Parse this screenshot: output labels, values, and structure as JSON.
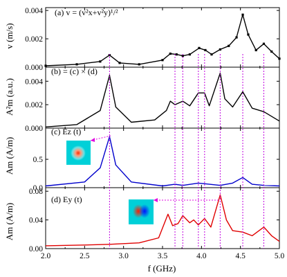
{
  "chart_data": {
    "type": "line",
    "x_range": [
      2.0,
      5.0
    ],
    "x_ticks": [
      "2.0",
      "2.5",
      "3.0",
      "3.5",
      "4.0",
      "4.5",
      "5.0"
    ],
    "x_label": "f (GHz)",
    "guide_lines_ghz": [
      2.82,
      3.66,
      3.76,
      3.96,
      4.04,
      4.24,
      4.53,
      4.8
    ],
    "panels": [
      {
        "id": "a",
        "label": "(a) v = (v²x+v²y)¹/²",
        "ylabel": "v (m/s)",
        "ylim": [
          0,
          0.0042
        ],
        "y_ticks": [
          {
            "v": 0,
            "t": "0.000"
          },
          {
            "v": 0.002,
            "t": "0.002"
          },
          {
            "v": 0.004,
            "t": "0.004"
          }
        ],
        "color": "#000000",
        "markers": true,
        "series": [
          {
            "x": 2.0,
            "y": 0.0001
          },
          {
            "x": 2.4,
            "y": 0.0002
          },
          {
            "x": 2.7,
            "y": 0.0004
          },
          {
            "x": 2.82,
            "y": 0.00085
          },
          {
            "x": 2.95,
            "y": 0.0003
          },
          {
            "x": 3.2,
            "y": 0.0002
          },
          {
            "x": 3.5,
            "y": 0.0005
          },
          {
            "x": 3.6,
            "y": 0.00095
          },
          {
            "x": 3.68,
            "y": 0.0009
          },
          {
            "x": 3.76,
            "y": 0.0008
          },
          {
            "x": 3.85,
            "y": 0.0009
          },
          {
            "x": 3.97,
            "y": 0.00135
          },
          {
            "x": 4.05,
            "y": 0.0012
          },
          {
            "x": 4.13,
            "y": 0.0009
          },
          {
            "x": 4.24,
            "y": 0.00125
          },
          {
            "x": 4.35,
            "y": 0.0015
          },
          {
            "x": 4.45,
            "y": 0.0021
          },
          {
            "x": 4.53,
            "y": 0.0037
          },
          {
            "x": 4.6,
            "y": 0.0023
          },
          {
            "x": 4.7,
            "y": 0.0012
          },
          {
            "x": 4.8,
            "y": 0.00165
          },
          {
            "x": 4.9,
            "y": 0.0011
          },
          {
            "x": 5.0,
            "y": 0.0006
          }
        ]
      },
      {
        "id": "b",
        "label": "(b) = (c) × (d)",
        "ylabel": "A²m (a.u.)",
        "ylim": [
          0,
          0.0052
        ],
        "y_ticks": [
          {
            "v": 0,
            "t": "0.000"
          },
          {
            "v": 0.002,
            "t": "0.002"
          },
          {
            "v": 0.004,
            "t": "0.004"
          }
        ],
        "color": "#000000",
        "markers": false,
        "series": [
          {
            "x": 2.0,
            "y": 0.0001
          },
          {
            "x": 2.4,
            "y": 0.0003
          },
          {
            "x": 2.7,
            "y": 0.0015
          },
          {
            "x": 2.82,
            "y": 0.0045
          },
          {
            "x": 2.9,
            "y": 0.0018
          },
          {
            "x": 3.1,
            "y": 0.0005
          },
          {
            "x": 3.4,
            "y": 0.0007
          },
          {
            "x": 3.55,
            "y": 0.0015
          },
          {
            "x": 3.6,
            "y": 0.0023
          },
          {
            "x": 3.66,
            "y": 0.002
          },
          {
            "x": 3.76,
            "y": 0.0023
          },
          {
            "x": 3.85,
            "y": 0.0019
          },
          {
            "x": 3.96,
            "y": 0.003
          },
          {
            "x": 4.04,
            "y": 0.003
          },
          {
            "x": 4.1,
            "y": 0.0019
          },
          {
            "x": 4.24,
            "y": 0.0047
          },
          {
            "x": 4.3,
            "y": 0.0025
          },
          {
            "x": 4.4,
            "y": 0.0018
          },
          {
            "x": 4.53,
            "y": 0.0031
          },
          {
            "x": 4.65,
            "y": 0.0017
          },
          {
            "x": 4.8,
            "y": 0.0014
          },
          {
            "x": 5.0,
            "y": 0.0006
          }
        ]
      },
      {
        "id": "c",
        "label": "(c) Ez (t)",
        "ylabel": "Am (A/m)",
        "ylim": [
          0,
          1.05
        ],
        "y_ticks": [
          {
            "v": 0,
            "t": "0.0"
          },
          {
            "v": 0.5,
            "t": "0.5"
          }
        ],
        "color": "#0000cc",
        "markers": false,
        "series": [
          {
            "x": 2.0,
            "y": 0.03
          },
          {
            "x": 2.5,
            "y": 0.1
          },
          {
            "x": 2.7,
            "y": 0.35
          },
          {
            "x": 2.82,
            "y": 0.9
          },
          {
            "x": 2.9,
            "y": 0.4
          },
          {
            "x": 3.1,
            "y": 0.1
          },
          {
            "x": 3.5,
            "y": 0.03
          },
          {
            "x": 3.66,
            "y": 0.06
          },
          {
            "x": 3.76,
            "y": 0.04
          },
          {
            "x": 3.96,
            "y": 0.08
          },
          {
            "x": 4.04,
            "y": 0.07
          },
          {
            "x": 4.24,
            "y": 0.04
          },
          {
            "x": 4.4,
            "y": 0.08
          },
          {
            "x": 4.53,
            "y": 0.18
          },
          {
            "x": 4.65,
            "y": 0.06
          },
          {
            "x": 4.8,
            "y": 0.04
          },
          {
            "x": 5.0,
            "y": 0.03
          }
        ]
      },
      {
        "id": "d",
        "label": "(d) Ey (t)",
        "ylabel": "Am (A/m)",
        "ylim": [
          0,
          0.085
        ],
        "y_ticks": [
          {
            "v": 0,
            "t": "0.00"
          },
          {
            "v": 0.04,
            "t": "0.04"
          },
          {
            "v": 0.08,
            "t": "0.08"
          }
        ],
        "color": "#e00000",
        "markers": false,
        "series": [
          {
            "x": 2.0,
            "y": 0.004
          },
          {
            "x": 2.5,
            "y": 0.005
          },
          {
            "x": 2.82,
            "y": 0.006
          },
          {
            "x": 3.2,
            "y": 0.008
          },
          {
            "x": 3.45,
            "y": 0.015
          },
          {
            "x": 3.57,
            "y": 0.048
          },
          {
            "x": 3.63,
            "y": 0.032
          },
          {
            "x": 3.7,
            "y": 0.035
          },
          {
            "x": 3.76,
            "y": 0.046
          },
          {
            "x": 3.85,
            "y": 0.036
          },
          {
            "x": 3.9,
            "y": 0.04
          },
          {
            "x": 3.96,
            "y": 0.033
          },
          {
            "x": 4.04,
            "y": 0.042
          },
          {
            "x": 4.12,
            "y": 0.03
          },
          {
            "x": 4.24,
            "y": 0.075
          },
          {
            "x": 4.32,
            "y": 0.04
          },
          {
            "x": 4.4,
            "y": 0.025
          },
          {
            "x": 4.53,
            "y": 0.023
          },
          {
            "x": 4.65,
            "y": 0.018
          },
          {
            "x": 4.8,
            "y": 0.03
          },
          {
            "x": 4.9,
            "y": 0.018
          },
          {
            "x": 5.0,
            "y": 0.01
          }
        ]
      }
    ],
    "annotations": [
      {
        "panel": "c",
        "component": "Ez",
        "points_to_ghz": 2.82
      },
      {
        "panel": "d",
        "component": "Ey",
        "points_to_ghz": 4.24
      }
    ]
  }
}
